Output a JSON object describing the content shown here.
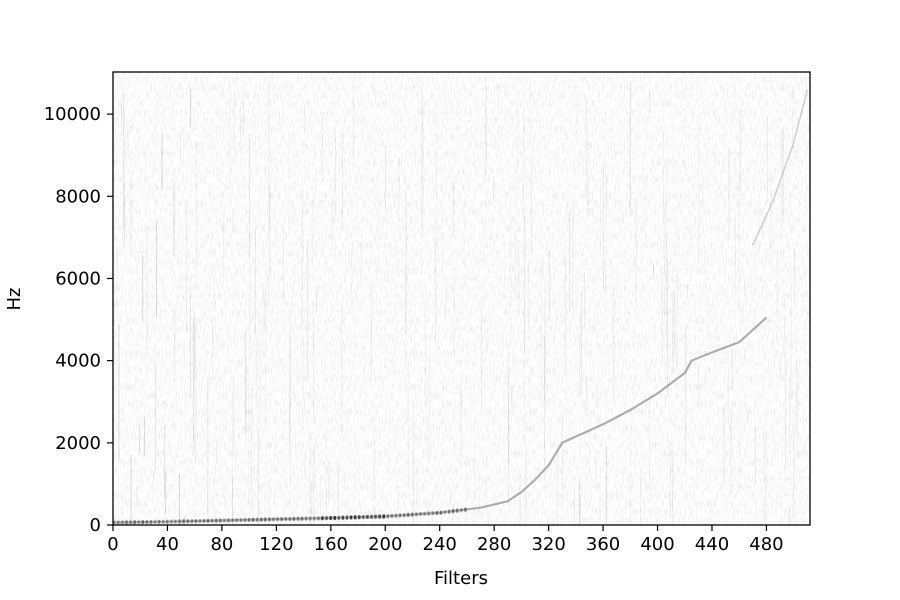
{
  "chart_data": {
    "type": "heatmap",
    "title": "",
    "xlabel": "Filters",
    "ylabel": "Hz",
    "xlim": [
      0,
      512
    ],
    "ylim": [
      0,
      11025
    ],
    "x_ticks": [
      0,
      40,
      80,
      120,
      160,
      200,
      240,
      280,
      320,
      360,
      400,
      440,
      480
    ],
    "y_ticks": [
      0,
      2000,
      4000,
      6000,
      8000,
      10000
    ],
    "colormap": "grayscale (white = low, black = high)",
    "grid": false,
    "ridge_line": {
      "filters": [
        0,
        40,
        80,
        120,
        160,
        200,
        240,
        270,
        290,
        300,
        310,
        320,
        330,
        360,
        380,
        400,
        420,
        425,
        440,
        460,
        480
      ],
      "hz": [
        60,
        80,
        110,
        140,
        170,
        210,
        300,
        420,
        580,
        800,
        1100,
        1450,
        2000,
        2450,
        2800,
        3200,
        3700,
        4000,
        4200,
        4450,
        5050
      ]
    },
    "upper_trace": {
      "filters": [
        470,
        485,
        500,
        510
      ],
      "hz": [
        6800,
        7900,
        9300,
        10600
      ]
    }
  }
}
